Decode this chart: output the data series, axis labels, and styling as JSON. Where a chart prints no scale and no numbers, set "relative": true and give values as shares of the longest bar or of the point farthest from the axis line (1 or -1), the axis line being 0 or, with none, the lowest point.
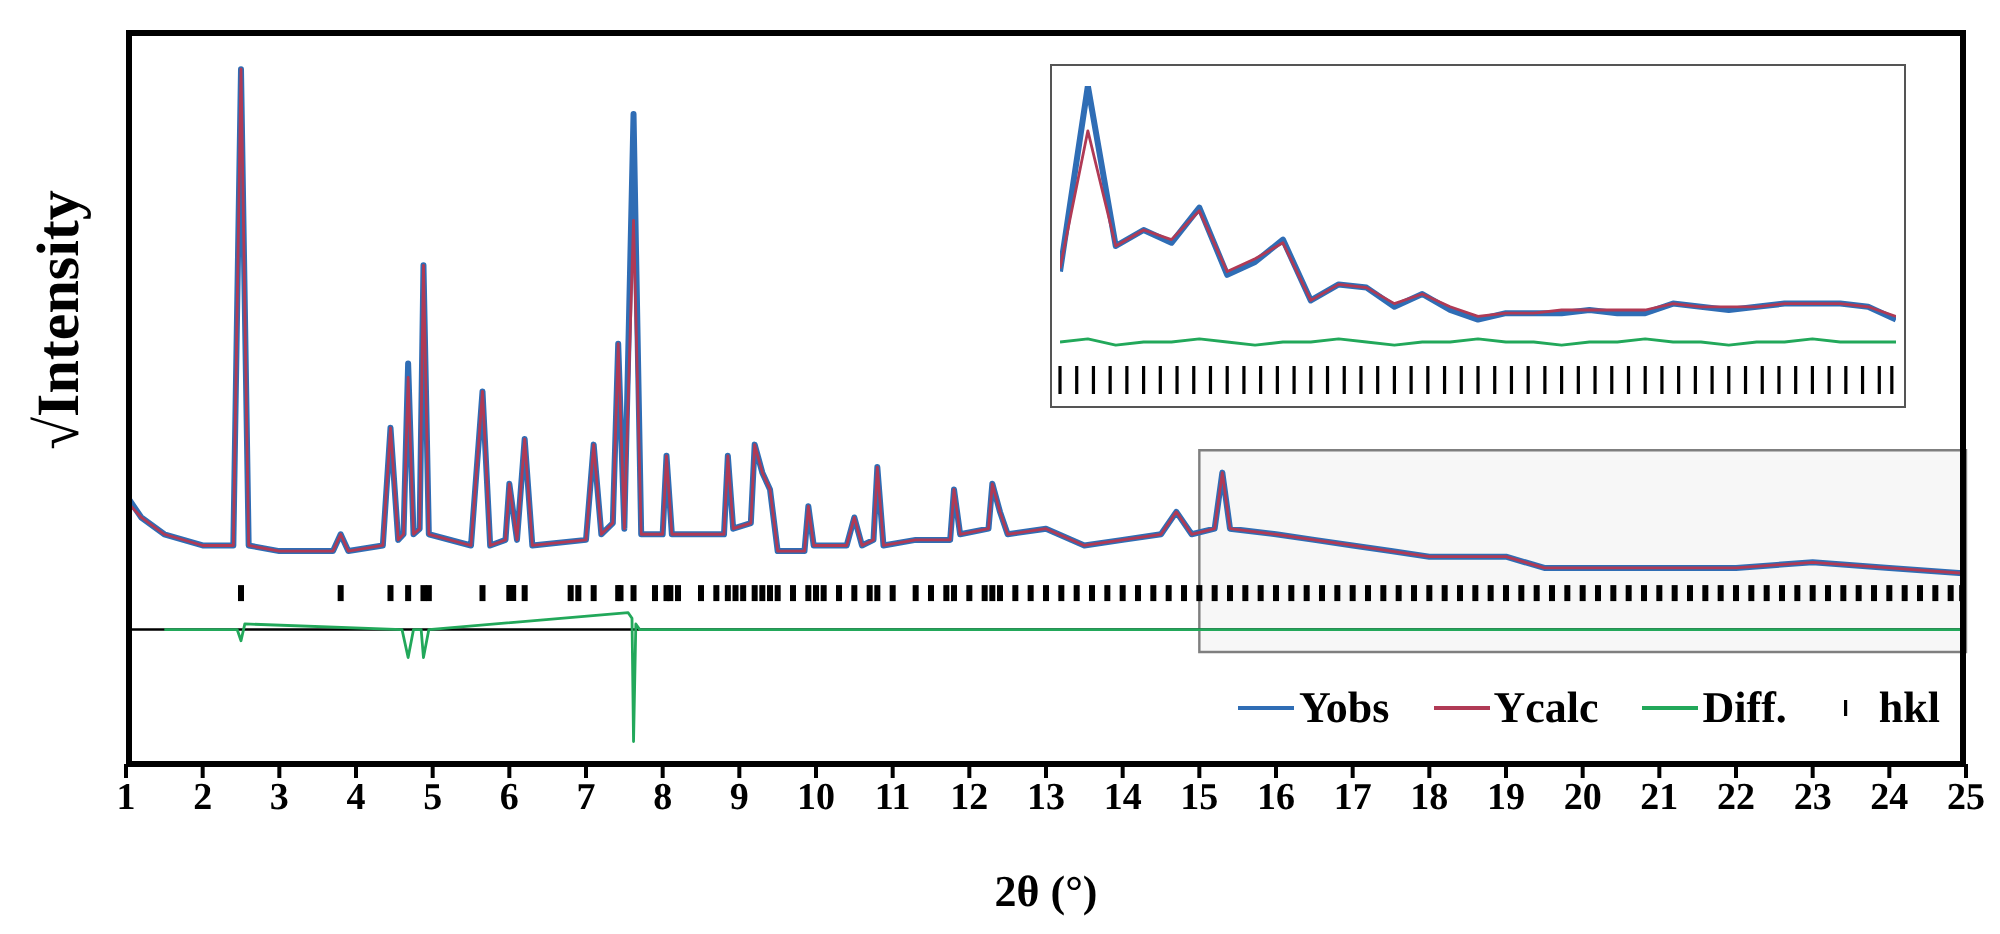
{
  "chart_data": [
    {
      "type": "line",
      "relative": true,
      "xlabel": "2θ (°)",
      "ylabel": "√Intensity",
      "xlim": [
        1,
        25
      ],
      "xticks": [
        1,
        2,
        3,
        4,
        5,
        6,
        7,
        8,
        9,
        10,
        11,
        12,
        13,
        14,
        15,
        16,
        17,
        18,
        19,
        20,
        21,
        22,
        23,
        24,
        25
      ],
      "legend": "bottom right",
      "bands": [
        {
          "axis": "x",
          "from": 15,
          "to": 25,
          "color": "#7f7f7f"
        }
      ],
      "ref_lines": [
        {
          "axis": "y",
          "value": 0,
          "color": "#000000"
        }
      ],
      "series": [
        {
          "name": "Yobs",
          "type": "line",
          "color": "#2f6db5",
          "x": [
            1,
            1.2,
            1.5,
            2,
            2.4,
            2.5,
            2.6,
            3,
            3.7,
            3.8,
            3.9,
            4.35,
            4.45,
            4.55,
            4.62,
            4.68,
            4.75,
            4.83,
            4.88,
            4.95,
            5.5,
            5.65,
            5.75,
            5.95,
            6.0,
            6.1,
            6.2,
            6.3,
            7.0,
            7.1,
            7.2,
            7.35,
            7.42,
            7.5,
            7.62,
            7.72,
            8.0,
            8.05,
            8.12,
            8.8,
            8.85,
            8.92,
            9.15,
            9.2,
            9.3,
            9.4,
            9.5,
            9.85,
            9.9,
            9.97,
            10.4,
            10.5,
            10.6,
            10.75,
            10.8,
            10.88,
            11.3,
            11.75,
            11.8,
            11.88,
            12.25,
            12.3,
            12.4,
            12.5,
            13,
            13.5,
            14,
            14.5,
            14.7,
            14.9,
            15.2,
            15.3,
            15.4,
            16,
            16.5,
            17,
            17.5,
            18,
            18.5,
            19,
            19.5,
            20,
            21,
            22,
            23,
            24,
            25
          ],
          "values": [
            0.24,
            0.2,
            0.17,
            0.15,
            0.15,
            1.0,
            0.15,
            0.14,
            0.14,
            0.17,
            0.14,
            0.15,
            0.36,
            0.16,
            0.17,
            0.475,
            0.17,
            0.18,
            0.65,
            0.17,
            0.15,
            0.425,
            0.15,
            0.16,
            0.26,
            0.16,
            0.34,
            0.15,
            0.16,
            0.33,
            0.17,
            0.19,
            0.51,
            0.18,
            0.92,
            0.17,
            0.17,
            0.31,
            0.17,
            0.17,
            0.31,
            0.18,
            0.19,
            0.33,
            0.28,
            0.25,
            0.14,
            0.14,
            0.22,
            0.15,
            0.15,
            0.2,
            0.15,
            0.16,
            0.29,
            0.15,
            0.16,
            0.16,
            0.25,
            0.17,
            0.18,
            0.26,
            0.21,
            0.17,
            0.18,
            0.15,
            0.16,
            0.17,
            0.21,
            0.17,
            0.18,
            0.28,
            0.18,
            0.17,
            0.16,
            0.15,
            0.14,
            0.13,
            0.13,
            0.13,
            0.11,
            0.11,
            0.11,
            0.11,
            0.12,
            0.11,
            0.1
          ]
        },
        {
          "name": "Ycalc",
          "type": "line",
          "color": "#b03a55",
          "x": [
            1,
            1.2,
            1.5,
            2,
            2.4,
            2.5,
            2.6,
            3,
            3.7,
            3.8,
            3.9,
            4.35,
            4.45,
            4.55,
            4.62,
            4.68,
            4.75,
            4.83,
            4.88,
            4.95,
            5.5,
            5.65,
            5.75,
            5.95,
            6.0,
            6.1,
            6.2,
            6.3,
            7.0,
            7.1,
            7.2,
            7.35,
            7.42,
            7.5,
            7.62,
            7.72,
            8.0,
            8.05,
            8.12,
            8.8,
            8.85,
            8.92,
            9.15,
            9.2,
            9.3,
            9.4,
            9.5,
            9.85,
            9.9,
            9.97,
            10.4,
            10.5,
            10.6,
            10.75,
            10.8,
            10.88,
            11.3,
            11.75,
            11.8,
            11.88,
            12.25,
            12.3,
            12.4,
            12.5,
            13,
            13.5,
            14,
            14.5,
            14.7,
            14.9,
            15.2,
            15.3,
            15.4,
            16,
            16.5,
            17,
            17.5,
            18,
            18.5,
            19,
            19.5,
            20,
            21,
            22,
            23,
            24,
            25
          ],
          "values": [
            0.23,
            0.2,
            0.17,
            0.15,
            0.15,
            1.0,
            0.15,
            0.14,
            0.14,
            0.17,
            0.14,
            0.15,
            0.36,
            0.16,
            0.17,
            0.45,
            0.17,
            0.18,
            0.65,
            0.17,
            0.15,
            0.425,
            0.15,
            0.16,
            0.26,
            0.16,
            0.34,
            0.15,
            0.16,
            0.33,
            0.17,
            0.19,
            0.51,
            0.18,
            0.73,
            0.17,
            0.17,
            0.31,
            0.17,
            0.17,
            0.31,
            0.18,
            0.19,
            0.33,
            0.28,
            0.25,
            0.14,
            0.14,
            0.22,
            0.15,
            0.15,
            0.2,
            0.15,
            0.16,
            0.29,
            0.15,
            0.16,
            0.16,
            0.25,
            0.17,
            0.18,
            0.26,
            0.21,
            0.17,
            0.18,
            0.15,
            0.16,
            0.17,
            0.21,
            0.17,
            0.18,
            0.28,
            0.18,
            0.17,
            0.16,
            0.15,
            0.14,
            0.13,
            0.13,
            0.13,
            0.11,
            0.11,
            0.11,
            0.11,
            0.12,
            0.11,
            0.1
          ]
        },
        {
          "name": "Diff.",
          "type": "line",
          "color": "#22a85a",
          "x": [
            1.5,
            2.45,
            2.5,
            2.55,
            4.6,
            4.68,
            4.75,
            4.85,
            4.88,
            4.95,
            7.55,
            7.6,
            7.62,
            7.65,
            7.7,
            10,
            15,
            20,
            25
          ],
          "values": [
            0,
            0,
            -0.02,
            0.01,
            0,
            -0.05,
            0,
            0,
            -0.05,
            0,
            0.03,
            0.02,
            -0.2,
            0.01,
            0,
            0,
            0,
            0,
            0
          ]
        },
        {
          "name": "hkl",
          "type": "scatter",
          "color": "#000000",
          "x": [
            2.5,
            3.8,
            4.45,
            4.68,
            4.88,
            4.95,
            5.65,
            6.0,
            6.05,
            6.2,
            6.8,
            6.9,
            7.1,
            7.42,
            7.45,
            7.62,
            7.9,
            8.05,
            8.1,
            8.2,
            8.5,
            8.7,
            8.85,
            8.95,
            9.05,
            9.2,
            9.3,
            9.4,
            9.5,
            9.7,
            9.9,
            10.0,
            10.1,
            10.3,
            10.5,
            10.7,
            10.8,
            11.0,
            11.3,
            11.5,
            11.7,
            11.8,
            12.0,
            12.2,
            12.3,
            12.4,
            12.6,
            12.8,
            13.0,
            13.2,
            13.4,
            13.6,
            13.8,
            14.0,
            14.2,
            14.4,
            14.6,
            14.8,
            15.0,
            15.2,
            15.4,
            15.6,
            15.8,
            16.0,
            16.2,
            16.4,
            16.6,
            16.8,
            17.0,
            17.2,
            17.4,
            17.6,
            17.8,
            18.0,
            18.2,
            18.4,
            18.6,
            18.8,
            19.0,
            19.2,
            19.4,
            19.6,
            19.8,
            20.0,
            20.2,
            20.4,
            20.6,
            20.8,
            21.0,
            21.2,
            21.4,
            21.6,
            21.8,
            22.0,
            22.2,
            22.4,
            22.6,
            22.8,
            23.0,
            23.2,
            23.4,
            23.6,
            23.8,
            24.0,
            24.2,
            24.4,
            24.6,
            24.8,
            24.95
          ],
          "values": [
            0.065,
            0.065,
            0.065,
            0.065,
            0.065,
            0.065,
            0.065,
            0.065,
            0.065,
            0.065,
            0.065,
            0.065,
            0.065,
            0.065,
            0.065,
            0.065,
            0.065,
            0.065,
            0.065,
            0.065,
            0.065,
            0.065,
            0.065,
            0.065,
            0.065,
            0.065,
            0.065,
            0.065,
            0.065,
            0.065,
            0.065,
            0.065,
            0.065,
            0.065,
            0.065,
            0.065,
            0.065,
            0.065,
            0.065,
            0.065,
            0.065,
            0.065,
            0.065,
            0.065,
            0.065,
            0.065,
            0.065,
            0.065,
            0.065,
            0.065,
            0.065,
            0.065,
            0.065,
            0.065,
            0.065,
            0.065,
            0.065,
            0.065,
            0.065,
            0.065,
            0.065,
            0.065,
            0.065,
            0.065,
            0.065,
            0.065,
            0.065,
            0.065,
            0.065,
            0.065,
            0.065,
            0.065,
            0.065,
            0.065,
            0.065,
            0.065,
            0.065,
            0.065,
            0.065,
            0.065,
            0.065,
            0.065,
            0.065,
            0.065,
            0.065,
            0.065,
            0.065,
            0.065,
            0.065,
            0.065,
            0.065,
            0.065,
            0.065,
            0.065,
            0.065,
            0.065,
            0.065,
            0.065,
            0.065,
            0.065,
            0.065,
            0.065,
            0.065,
            0.065,
            0.065,
            0.065,
            0.065,
            0.065,
            0.065
          ]
        }
      ]
    },
    {
      "type": "line",
      "relative": true,
      "tick_labels": false,
      "categories": [
        null,
        null,
        null,
        null,
        null,
        null,
        null,
        null,
        null,
        null,
        null,
        null,
        null,
        null,
        null,
        null,
        null,
        null,
        null,
        null,
        null,
        null,
        null,
        null,
        null,
        null,
        null,
        null,
        null,
        null,
        null
      ],
      "series": [
        {
          "type": "line",
          "color": "#2f6db5",
          "values": [
            0.42,
            1.0,
            0.5,
            0.55,
            0.51,
            0.62,
            0.41,
            0.45,
            0.52,
            0.33,
            0.38,
            0.37,
            0.31,
            0.35,
            0.3,
            0.27,
            0.29,
            0.29,
            0.29,
            0.3,
            0.29,
            0.29,
            0.32,
            0.31,
            0.3,
            0.31,
            0.32,
            0.32,
            0.32,
            0.31,
            0.27
          ]
        },
        {
          "type": "line",
          "color": "#b03a55",
          "values": [
            0.43,
            0.86,
            0.5,
            0.55,
            0.52,
            0.61,
            0.42,
            0.46,
            0.51,
            0.33,
            0.38,
            0.37,
            0.32,
            0.35,
            0.31,
            0.28,
            0.29,
            0.29,
            0.3,
            0.3,
            0.3,
            0.3,
            0.32,
            0.31,
            0.31,
            0.31,
            0.32,
            0.32,
            0.32,
            0.31,
            0.28
          ]
        },
        {
          "type": "line",
          "color": "#22a85a",
          "values": [
            0.2,
            0.21,
            0.19,
            0.2,
            0.2,
            0.21,
            0.2,
            0.19,
            0.2,
            0.2,
            0.21,
            0.2,
            0.19,
            0.2,
            0.2,
            0.21,
            0.2,
            0.2,
            0.19,
            0.2,
            0.2,
            0.21,
            0.2,
            0.2,
            0.19,
            0.2,
            0.2,
            0.21,
            0.2,
            0.2,
            0.2
          ]
        }
      ]
    }
  ]
}
